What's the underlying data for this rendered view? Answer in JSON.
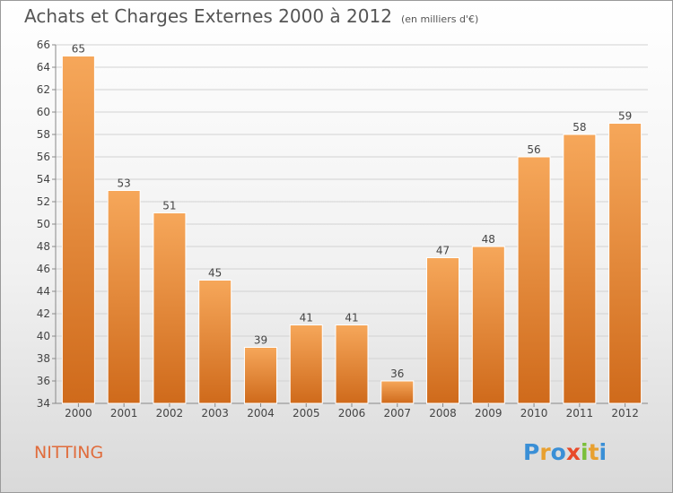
{
  "title": "Achats et Charges Externes 2000 à 2012",
  "unit_label": "(en milliers d'€)",
  "town": "NITTING",
  "brand": {
    "letters": [
      "P",
      "r",
      "o",
      "x",
      "i",
      "t",
      "i"
    ],
    "colors": [
      "#3a8fd6",
      "#e8a030",
      "#3a8fd6",
      "#e84a2a",
      "#7abf3a",
      "#e8a030",
      "#3a8fd6"
    ]
  },
  "colors": {
    "bar_light": "#f6a75a",
    "bar_dark": "#cf6a1b",
    "town": "#e06c3c"
  },
  "chart_data": {
    "type": "bar",
    "categories": [
      "2000",
      "2001",
      "2002",
      "2003",
      "2004",
      "2005",
      "2006",
      "2007",
      "2008",
      "2009",
      "2010",
      "2011",
      "2012"
    ],
    "values": [
      65,
      53,
      51,
      45,
      39,
      41,
      41,
      36,
      47,
      48,
      56,
      58,
      59
    ],
    "ylim": [
      34,
      66
    ],
    "yticks": [
      34,
      36,
      38,
      40,
      42,
      44,
      46,
      48,
      50,
      52,
      54,
      56,
      58,
      60,
      62,
      64,
      66
    ],
    "grid": true,
    "xlabel": "",
    "ylabel": ""
  }
}
